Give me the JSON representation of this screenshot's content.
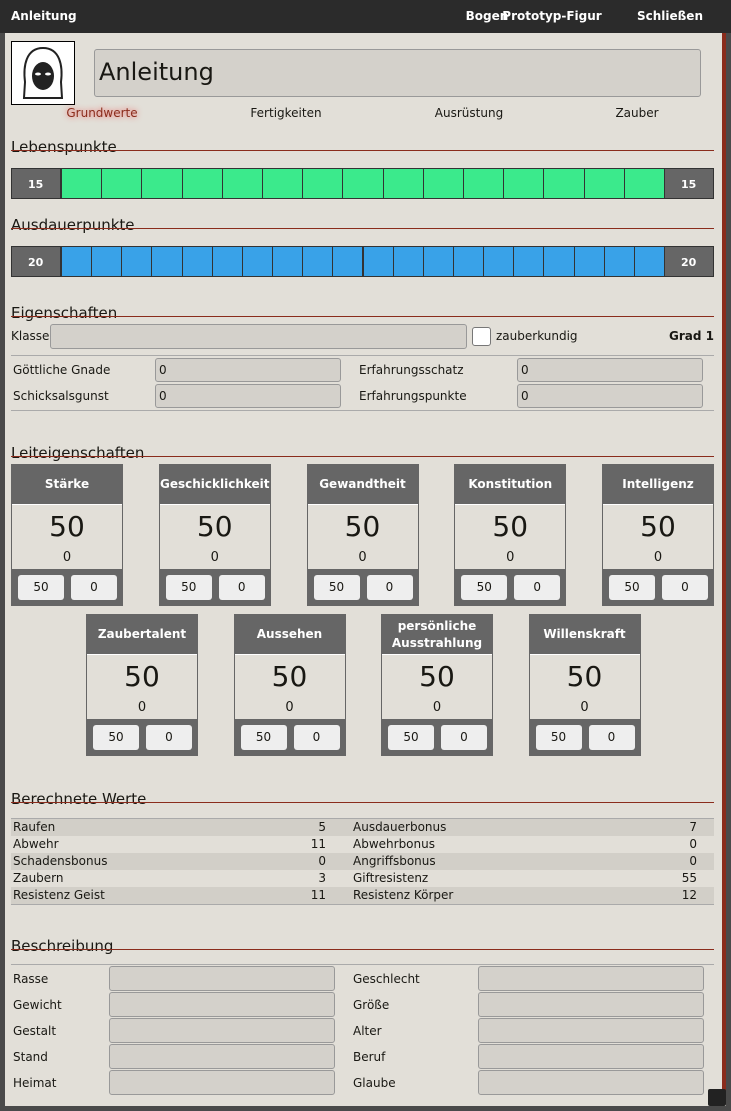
{
  "window": {
    "title": "Anleitung",
    "buttons": [
      "Bogen",
      "Prototyp-Figur",
      "Schließen"
    ]
  },
  "header": {
    "name": "Anleitung"
  },
  "tabs": [
    "Grundwerte",
    "Fertigkeiten",
    "Ausrüstung",
    "Zauber"
  ],
  "health": {
    "title": "Lebenspunkte",
    "current": 15,
    "max": 15,
    "color": "#3bea8c"
  },
  "stamina": {
    "title": "Ausdauerpunkte",
    "current": 20,
    "max": 20,
    "color": "#39a2e8"
  },
  "properties": {
    "title": "Eigenschaften",
    "class_label": "Klasse",
    "spell_label": "zauberkundig",
    "grade": "Grad 1",
    "fields": [
      {
        "label": "Göttliche Gnade",
        "value": 0
      },
      {
        "label": "Erfahrungsschatz",
        "value": 0
      },
      {
        "label": "Schicksalsgunst",
        "value": 0
      },
      {
        "label": "Erfahrungspunkte",
        "value": 0
      }
    ]
  },
  "attributes": {
    "title": "Leiteigenschaften",
    "items": [
      {
        "name": "Stärke",
        "value": 50,
        "mod": 0,
        "base": 50,
        "bonus": 0
      },
      {
        "name": "Geschicklichkeit",
        "value": 50,
        "mod": 0,
        "base": 50,
        "bonus": 0
      },
      {
        "name": "Gewandtheit",
        "value": 50,
        "mod": 0,
        "base": 50,
        "bonus": 0
      },
      {
        "name": "Konstitution",
        "value": 50,
        "mod": 0,
        "base": 50,
        "bonus": 0
      },
      {
        "name": "Intelligenz",
        "value": 50,
        "mod": 0,
        "base": 50,
        "bonus": 0
      },
      {
        "name": "Zaubertalent",
        "value": 50,
        "mod": 0,
        "base": 50,
        "bonus": 0
      },
      {
        "name": "Aussehen",
        "value": 50,
        "mod": 0,
        "base": 50,
        "bonus": 0
      },
      {
        "name": "persönliche Ausstrahlung",
        "value": 50,
        "mod": 0,
        "base": 50,
        "bonus": 0
      },
      {
        "name": "Willenskraft",
        "value": 50,
        "mod": 0,
        "base": 50,
        "bonus": 0
      }
    ]
  },
  "computed": {
    "title": "Berechnete Werte",
    "left": [
      {
        "label": "Raufen",
        "value": 5
      },
      {
        "label": "Abwehr",
        "value": 11
      },
      {
        "label": "Schadensbonus",
        "value": 0
      },
      {
        "label": "Zaubern",
        "value": 3
      },
      {
        "label": "Resistenz Geist",
        "value": 11
      }
    ],
    "right": [
      {
        "label": "Ausdauerbonus",
        "value": 7
      },
      {
        "label": "Abwehrbonus",
        "value": 0
      },
      {
        "label": "Angriffsbonus",
        "value": 0
      },
      {
        "label": "Giftresistenz",
        "value": 55
      },
      {
        "label": "Resistenz Körper",
        "value": 12
      }
    ]
  },
  "description": {
    "title": "Beschreibung",
    "left": [
      "Rasse",
      "Gewicht",
      "Gestalt",
      "Stand",
      "Heimat"
    ],
    "right": [
      "Geschlecht",
      "Größe",
      "Alter",
      "Beruf",
      "Glaube"
    ]
  }
}
